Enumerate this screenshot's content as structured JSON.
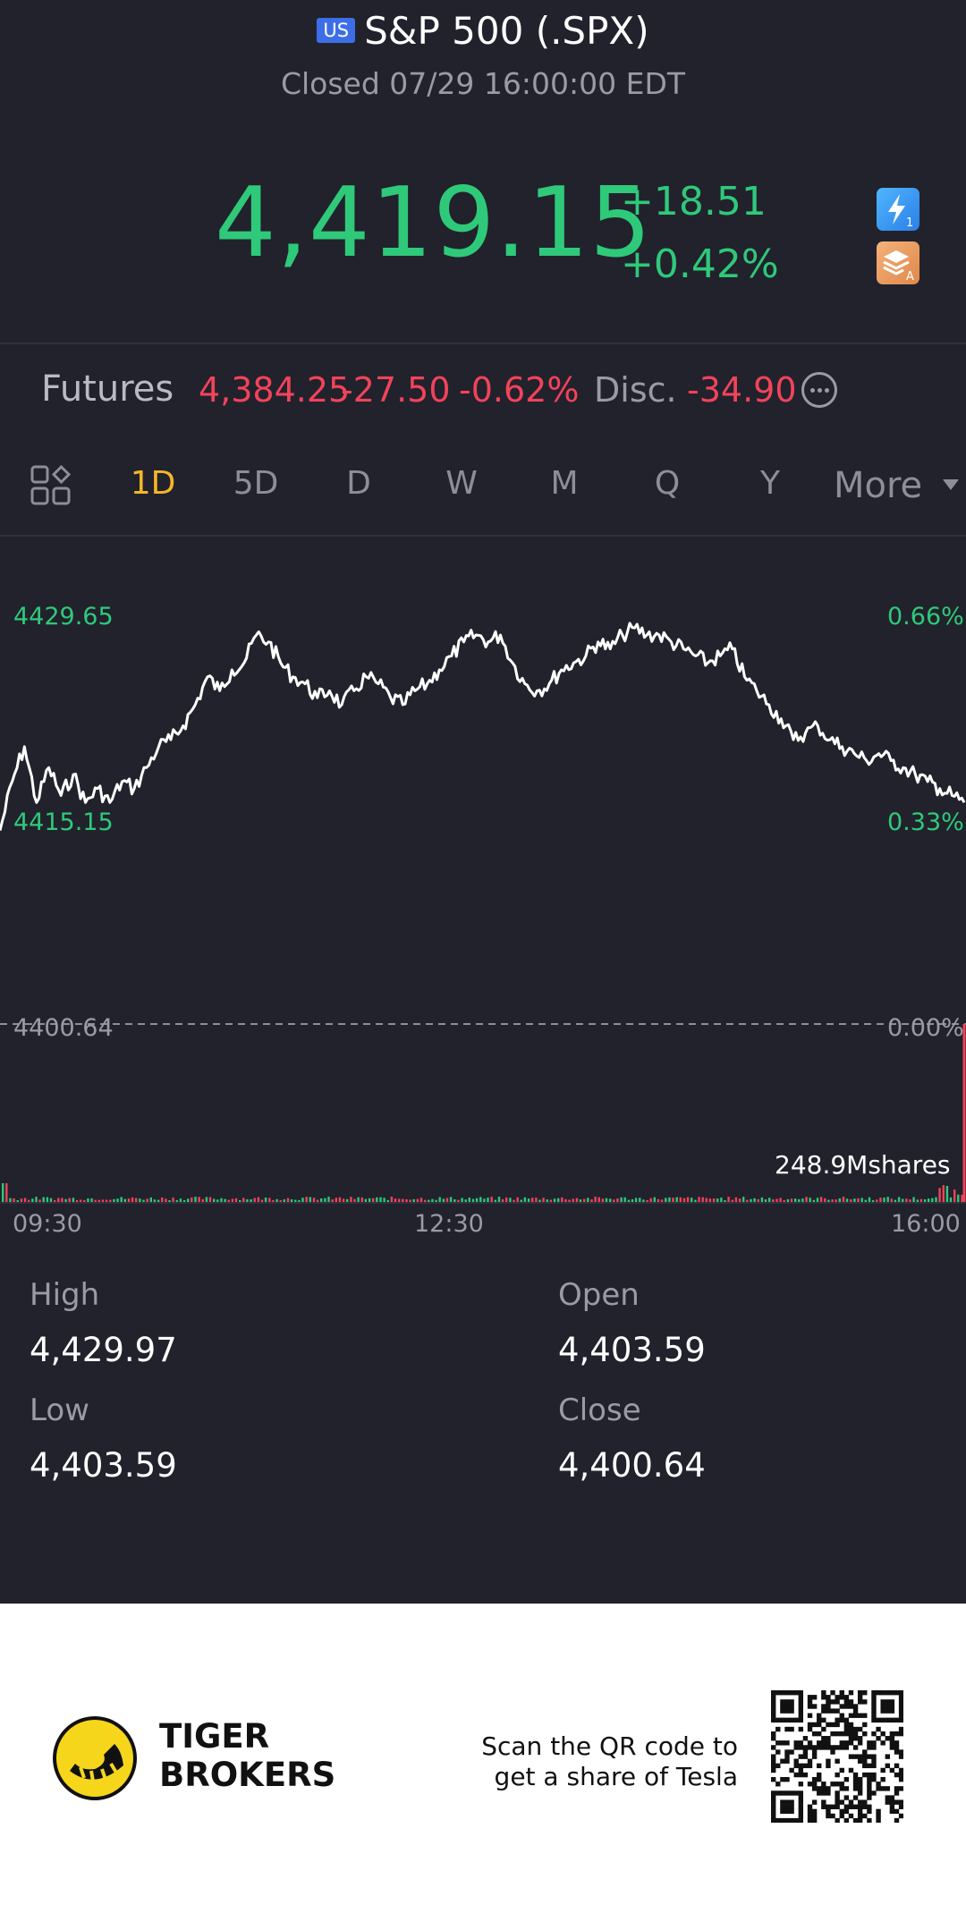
{
  "header": {
    "badge": "US",
    "title": "S&P 500 (.SPX)",
    "status": "Closed 07/29 16:00:00 EDT"
  },
  "quote": {
    "price": "4,419.15",
    "change": "+18.51",
    "change_pct": "+0.42%",
    "color_up": "#2fc97a"
  },
  "futures": {
    "label": "Futures",
    "price": "4,384.25",
    "change": "-27.50",
    "change_pct": "-0.62%",
    "disc_label": "Disc.",
    "disc_value": "-34.90",
    "color_down": "#f2435a"
  },
  "tabs": [
    "1D",
    "5D",
    "D",
    "W",
    "M",
    "Q",
    "Y"
  ],
  "tab_more": "More",
  "active_tab": "1D",
  "chart_data": {
    "type": "line",
    "y_left_ticks": [
      "4429.65",
      "4415.15",
      "4400.64"
    ],
    "y_right_ticks": [
      "0.66%",
      "0.33%",
      "0.00%"
    ],
    "x_ticks": [
      "09:30",
      "12:30",
      "16:00"
    ],
    "ylim": [
      4400.64,
      4429.65
    ],
    "baseline": 4400.64,
    "volume_label": "248.9Mshares",
    "series": [
      {
        "values": [
          4414.5,
          4418.0,
          4420.5,
          4416.5,
          4419.0,
          4417.0,
          4418.5,
          4416.5,
          4417.5,
          4416.5,
          4418.0,
          4417.5,
          4419.0,
          4420.5,
          4421.0,
          4422.0,
          4423.5,
          4425.5,
          4424.5,
          4426.0,
          4426.5,
          4428.5,
          4428.0,
          4426.5,
          4425.5,
          4425.0,
          4424.0,
          4424.5,
          4423.5,
          4424.5,
          4425.5,
          4425.0,
          4424.0,
          4423.5,
          4424.5,
          4425.0,
          4426.0,
          4427.0,
          4428.0,
          4428.5,
          4428.0,
          4428.5,
          4426.5,
          4425.0,
          4424.5,
          4425.0,
          4426.0,
          4426.5,
          4427.0,
          4428.0,
          4427.5,
          4428.5,
          4429.0,
          4428.5,
          4428.5,
          4428.0,
          4427.5,
          4427.0,
          4426.5,
          4427.0,
          4427.5,
          4425.5,
          4424.5,
          4423.5,
          4422.5,
          4421.0,
          4421.5,
          4422.0,
          4421.0,
          4420.5,
          4420.0,
          4419.5,
          4420.0,
          4419.5,
          4419.0,
          4418.5,
          4418.0,
          4417.5,
          4417.0,
          4416.5
        ]
      }
    ]
  },
  "stats": {
    "high_label": "High",
    "high": "4,429.97",
    "open_label": "Open",
    "open": "4,403.59",
    "low_label": "Low",
    "low": "4,403.59",
    "close_label": "Close",
    "close": "4,400.64"
  },
  "footer": {
    "brand_line1": "TIGER",
    "brand_line2": "BROKERS",
    "promo_line1": "Scan the QR code to",
    "promo_line2": "get a share of Tesla"
  }
}
